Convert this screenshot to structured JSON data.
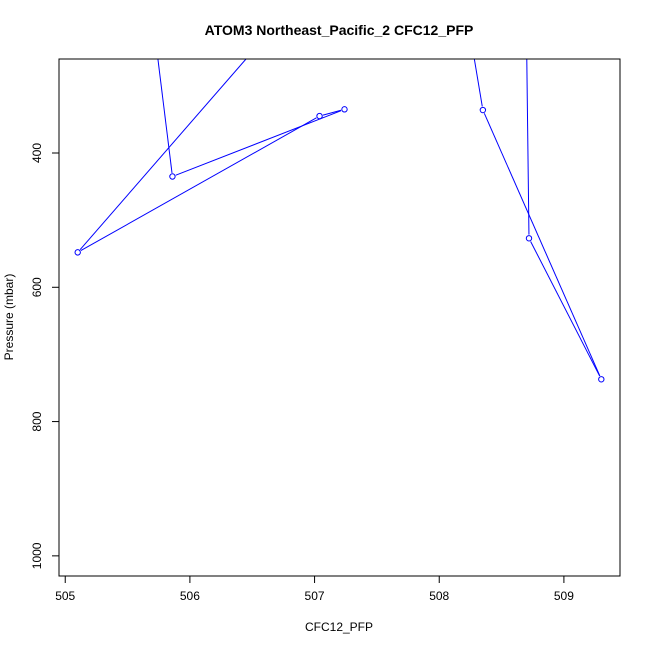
{
  "chart_data": {
    "type": "line",
    "title": "ATOM3 Northeast_Pacific_2 CFC12_PFP",
    "xlabel": "CFC12_PFP",
    "ylabel": "Pressure (mbar)",
    "xlim": [
      504.95,
      509.45
    ],
    "ylim": [
      1030,
      260
    ],
    "y_reversed": true,
    "x_ticks": [
      505,
      506,
      507,
      508,
      509
    ],
    "y_ticks": [
      400,
      600,
      800,
      1000
    ],
    "series_color": "#0000ff",
    "marker": "open-circle",
    "series": [
      {
        "x": [
          505.72,
          505.86,
          507.24,
          507.04,
          505.1,
          506.45,
          506.75,
          508.25,
          508.35,
          509.3,
          508.72,
          508.7
        ],
        "y": [
          225,
          435,
          335,
          345,
          548,
          260,
          260,
          225,
          336,
          737,
          527,
          225
        ],
        "markers": [
          false,
          true,
          true,
          true,
          true,
          false,
          false,
          false,
          true,
          true,
          true,
          false
        ]
      }
    ]
  }
}
